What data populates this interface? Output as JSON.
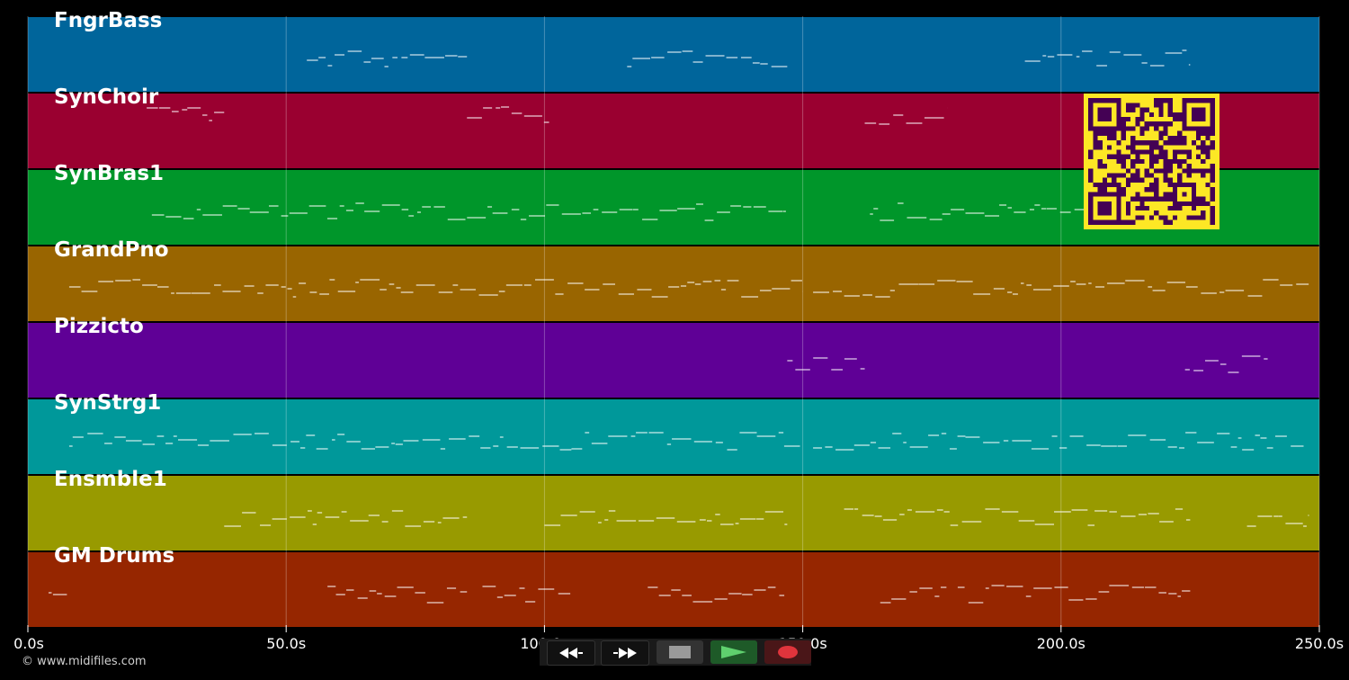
{
  "duration_seconds": 250,
  "tracks": [
    {
      "name": "FngrBass",
      "color": "#00659b"
    },
    {
      "name": "SynChoir",
      "color": "#9a0030"
    },
    {
      "name": "SynBras1",
      "color": "#00962a"
    },
    {
      "name": "GrandPno",
      "color": "#996500"
    },
    {
      "name": "Pizzicto",
      "color": "#5f0096"
    },
    {
      "name": "SynStrg1",
      "color": "#00989a"
    },
    {
      "name": "Ensmble1",
      "color": "#989a00"
    },
    {
      "name": "GM Drums",
      "color": "#962600"
    }
  ],
  "time_axis": {
    "ticks": [
      {
        "seconds": 0,
        "label": "0.0s"
      },
      {
        "seconds": 50,
        "label": "50.0s"
      },
      {
        "seconds": 100,
        "label": "100.0s"
      },
      {
        "seconds": 150,
        "label": "150.0s"
      },
      {
        "seconds": 200,
        "label": "200.0s"
      },
      {
        "seconds": 250,
        "label": "250.0s"
      }
    ]
  },
  "copyright": "© www.midifiles.com",
  "transport": {
    "rewind": "rewind-icon",
    "fast_forward": "fast-forward-icon",
    "stop": "stop-icon",
    "play": "play-icon",
    "record": "record-icon"
  },
  "qr_colors": {
    "fg": "#440154",
    "bg": "#fde725"
  }
}
